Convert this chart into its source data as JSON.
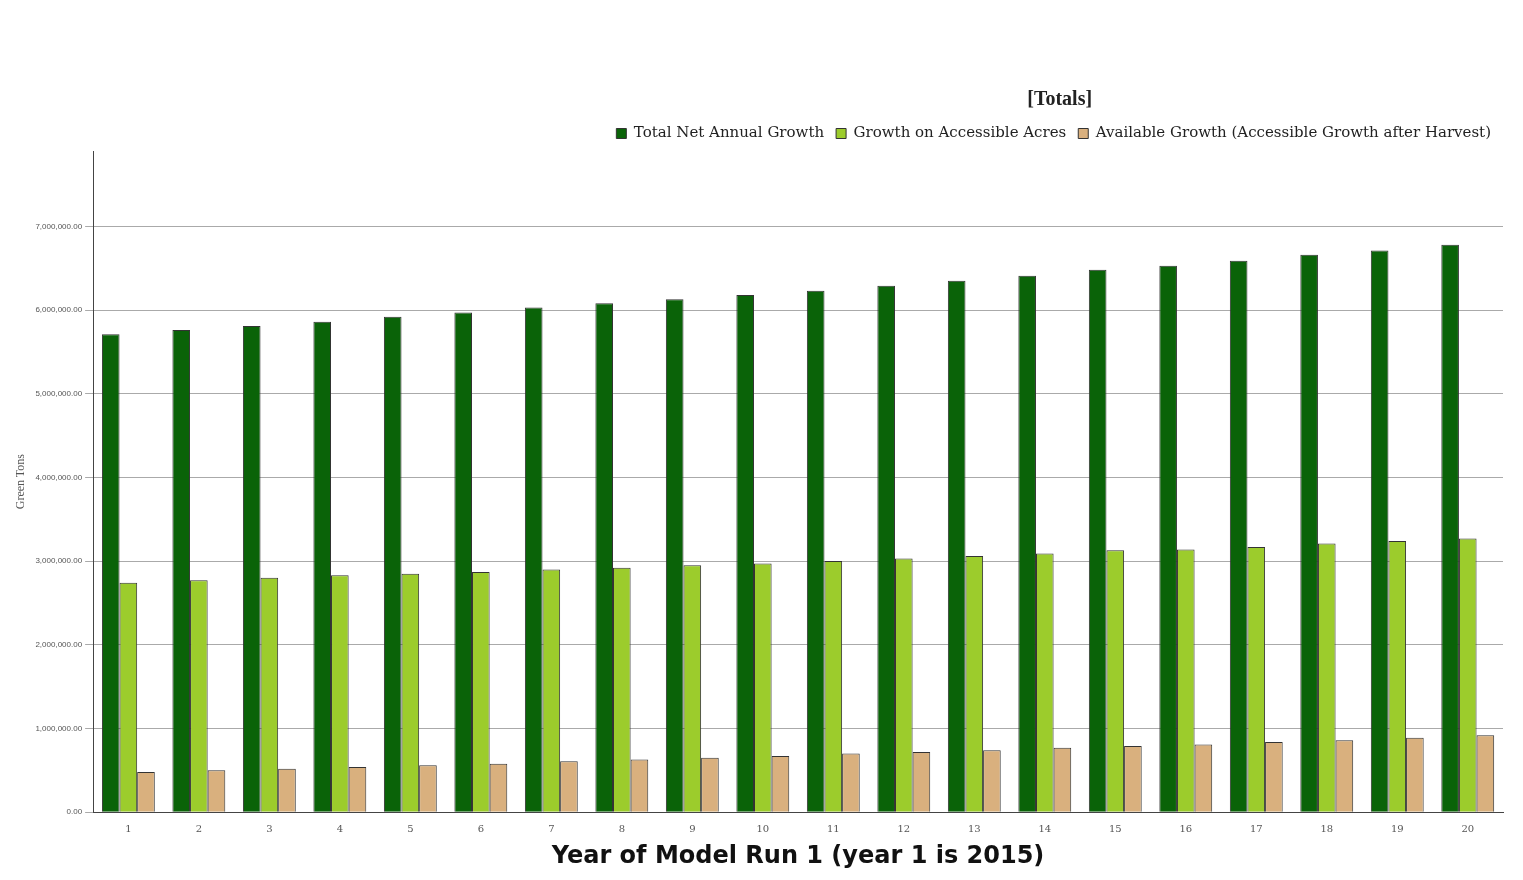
{
  "chart_data": {
    "type": "bar",
    "xlabel": "Year of Model Run 1 (year 1 is 2015)",
    "ylabel": "Green Tons",
    "legend_title": "[Totals]",
    "categories": [
      "1",
      "2",
      "3",
      "4",
      "5",
      "6",
      "7",
      "8",
      "9",
      "10",
      "11",
      "12",
      "13",
      "14",
      "15",
      "16",
      "17",
      "18",
      "19",
      "20"
    ],
    "series": [
      {
        "name": "Total Net Annual Growth",
        "color": "#0a6308",
        "values": [
          5710000,
          5760000,
          5810000,
          5860000,
          5920000,
          5970000,
          6030000,
          6080000,
          6130000,
          6180000,
          6230000,
          6290000,
          6350000,
          6410000,
          6480000,
          6530000,
          6590000,
          6660000,
          6710000,
          6780000
        ]
      },
      {
        "name": "Growth on Accessible Acres",
        "color": "#9ccc2c",
        "values": [
          2740000,
          2770000,
          2800000,
          2830000,
          2850000,
          2870000,
          2900000,
          2920000,
          2950000,
          2970000,
          3000000,
          3030000,
          3060000,
          3090000,
          3130000,
          3140000,
          3170000,
          3210000,
          3240000,
          3270000
        ]
      },
      {
        "name": "Available Growth (Accessible Growth after Harvest)",
        "color": "#d9b07e",
        "values": [
          480000,
          500000,
          520000,
          540000,
          560000,
          580000,
          610000,
          630000,
          650000,
          670000,
          700000,
          720000,
          740000,
          770000,
          790000,
          810000,
          840000,
          860000,
          890000,
          920000
        ]
      }
    ],
    "ylim": [
      0,
      7900000
    ],
    "yticks": [
      {
        "value": 0,
        "label": "0.00"
      },
      {
        "value": 1000000,
        "label": "1,000,000.00"
      },
      {
        "value": 2000000,
        "label": "2,000,000.00"
      },
      {
        "value": 3000000,
        "label": "3,000,000.00"
      },
      {
        "value": 4000000,
        "label": "4,000,000.00"
      },
      {
        "value": 5000000,
        "label": "5,000,000.00"
      },
      {
        "value": 6000000,
        "label": "6,000,000.00"
      },
      {
        "value": 7000000,
        "label": "7,000,000.00"
      }
    ],
    "grid": "y",
    "legend": "top right"
  }
}
